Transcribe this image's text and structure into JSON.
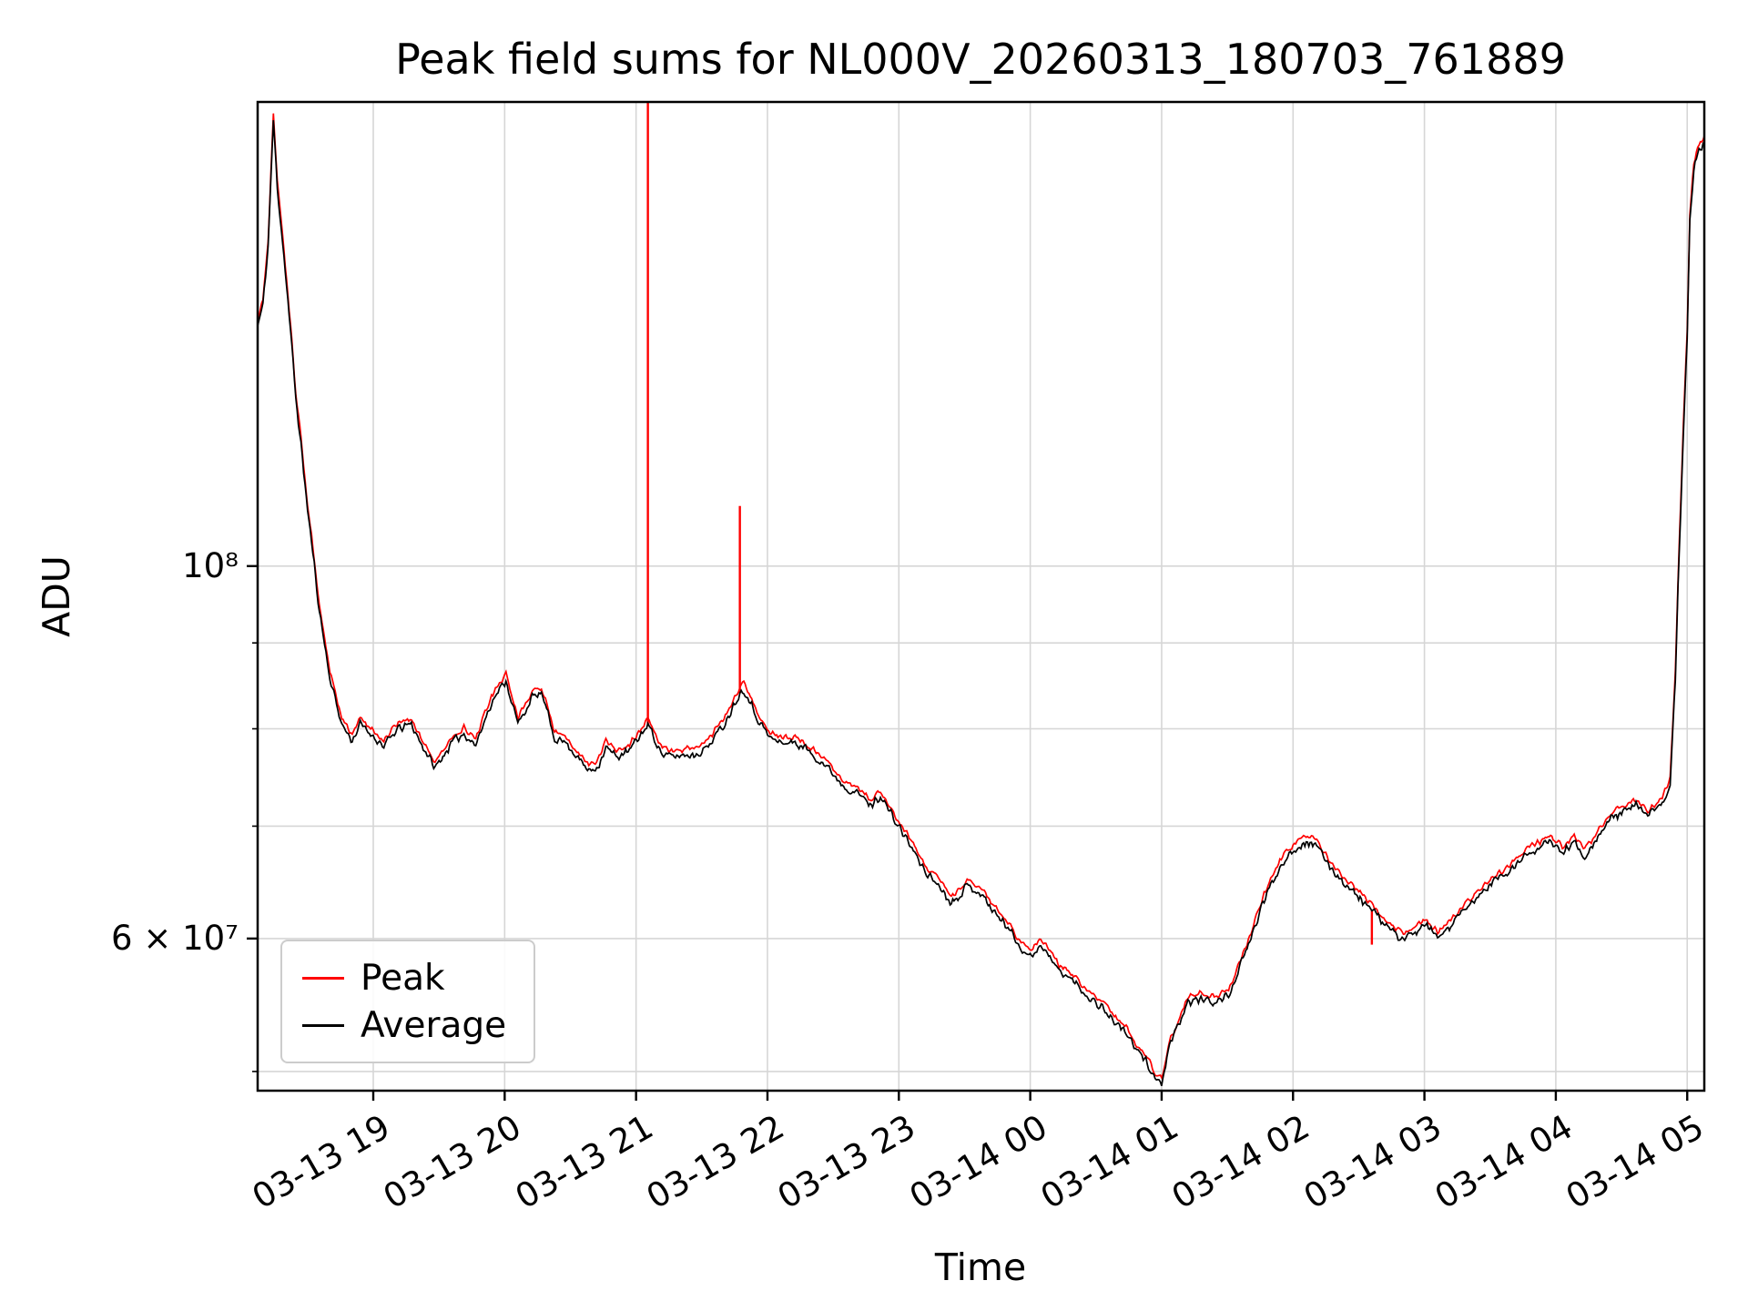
{
  "figure": {
    "title": "Peak field sums for NL000V_20260313_180703_761889",
    "xlabel": "Time",
    "ylabel": "ADU"
  },
  "legend": {
    "items": [
      {
        "label": "Peak",
        "color": "#ff0000"
      },
      {
        "label": "Average",
        "color": "#000000"
      }
    ]
  },
  "chart_data": {
    "type": "line",
    "title": "Peak field sums for NL000V_20260313_180703_761889",
    "xlabel": "Time",
    "ylabel": "ADU",
    "yscale": "log",
    "grid": true,
    "legend_position": "lower left",
    "x_unit": "hours since 2026-03-13 00:00",
    "value_unit": 10000000,
    "xlim": [
      18.12,
      29.13
    ],
    "ylim_e7": [
      4.87,
      18.9
    ],
    "x_ticks": [
      {
        "t": 19,
        "label": "03-13 19"
      },
      {
        "t": 20,
        "label": "03-13 20"
      },
      {
        "t": 21,
        "label": "03-13 21"
      },
      {
        "t": 22,
        "label": "03-13 22"
      },
      {
        "t": 23,
        "label": "03-13 23"
      },
      {
        "t": 24,
        "label": "03-14 00"
      },
      {
        "t": 25,
        "label": "03-14 01"
      },
      {
        "t": 26,
        "label": "03-14 02"
      },
      {
        "t": 27,
        "label": "03-14 03"
      },
      {
        "t": 28,
        "label": "03-14 04"
      },
      {
        "t": 29,
        "label": "03-14 05"
      }
    ],
    "y_ticks": [
      {
        "v_e7": 10,
        "label": "10⁸",
        "kind": "major"
      },
      {
        "v_e7": 6,
        "label": "6 × 10⁷",
        "kind": "major"
      },
      {
        "v_e7": 5,
        "label": "",
        "kind": "minor"
      },
      {
        "v_e7": 7,
        "label": "",
        "kind": "minor"
      },
      {
        "v_e7": 8,
        "label": "",
        "kind": "minor"
      },
      {
        "v_e7": 9,
        "label": "",
        "kind": "minor"
      }
    ],
    "noise": {
      "seed_avg": 11,
      "seed_peak": 97,
      "amplitude_avg": 0.007,
      "amplitude_peak": 0.005,
      "dt": 0.01
    },
    "series": [
      {
        "name": "Peak",
        "color": "#ff0000",
        "derived_from": "Average",
        "factor": 1.008,
        "spikes_e7": [
          [
            21.09,
            21.0
          ],
          [
            21.79,
            10.86
          ],
          [
            26.6,
            5.95
          ]
        ]
      },
      {
        "name": "Average",
        "color": "#000000",
        "points_e7": [
          [
            18.12,
            13.9
          ],
          [
            18.16,
            14.3
          ],
          [
            18.2,
            15.5
          ],
          [
            18.24,
            18.4
          ],
          [
            18.27,
            16.8
          ],
          [
            18.33,
            15.0
          ],
          [
            18.41,
            12.6
          ],
          [
            18.5,
            10.8
          ],
          [
            18.59,
            9.4
          ],
          [
            18.67,
            8.57
          ],
          [
            18.76,
            8.05
          ],
          [
            18.84,
            7.87
          ],
          [
            18.9,
            8.05
          ],
          [
            19.0,
            7.92
          ],
          [
            19.08,
            7.81
          ],
          [
            19.19,
            8.0
          ],
          [
            19.29,
            8.05
          ],
          [
            19.36,
            7.85
          ],
          [
            19.47,
            7.58
          ],
          [
            19.6,
            7.85
          ],
          [
            19.69,
            7.95
          ],
          [
            19.78,
            7.82
          ],
          [
            19.9,
            8.3
          ],
          [
            20.01,
            8.55
          ],
          [
            20.1,
            8.05
          ],
          [
            20.21,
            8.35
          ],
          [
            20.28,
            8.4
          ],
          [
            20.38,
            7.9
          ],
          [
            20.47,
            7.85
          ],
          [
            20.55,
            7.7
          ],
          [
            20.64,
            7.55
          ],
          [
            20.71,
            7.6
          ],
          [
            20.77,
            7.8
          ],
          [
            20.85,
            7.7
          ],
          [
            20.94,
            7.75
          ],
          [
            21.02,
            7.9
          ],
          [
            21.09,
            8.05
          ],
          [
            21.2,
            7.72
          ],
          [
            21.28,
            7.7
          ],
          [
            21.38,
            7.72
          ],
          [
            21.45,
            7.72
          ],
          [
            21.54,
            7.8
          ],
          [
            21.67,
            8.05
          ],
          [
            21.79,
            8.4
          ],
          [
            21.82,
            8.45
          ],
          [
            21.93,
            8.1
          ],
          [
            22.02,
            7.9
          ],
          [
            22.1,
            7.85
          ],
          [
            22.2,
            7.85
          ],
          [
            22.28,
            7.8
          ],
          [
            22.32,
            7.75
          ],
          [
            22.45,
            7.6
          ],
          [
            22.58,
            7.4
          ],
          [
            22.71,
            7.3
          ],
          [
            22.79,
            7.2
          ],
          [
            22.86,
            7.3
          ],
          [
            22.97,
            7.05
          ],
          [
            23.05,
            6.9
          ],
          [
            23.14,
            6.7
          ],
          [
            23.22,
            6.55
          ],
          [
            23.31,
            6.45
          ],
          [
            23.4,
            6.3
          ],
          [
            23.52,
            6.45
          ],
          [
            23.61,
            6.4
          ],
          [
            23.74,
            6.2
          ],
          [
            23.83,
            6.1
          ],
          [
            23.91,
            5.95
          ],
          [
            24.0,
            5.85
          ],
          [
            24.08,
            5.95
          ],
          [
            24.21,
            5.75
          ],
          [
            24.34,
            5.65
          ],
          [
            24.43,
            5.55
          ],
          [
            24.56,
            5.45
          ],
          [
            24.64,
            5.35
          ],
          [
            24.73,
            5.28
          ],
          [
            24.8,
            5.15
          ],
          [
            24.88,
            5.08
          ],
          [
            24.95,
            4.95
          ],
          [
            25.0,
            4.92
          ],
          [
            25.07,
            5.2
          ],
          [
            25.16,
            5.4
          ],
          [
            25.2,
            5.5
          ],
          [
            25.3,
            5.52
          ],
          [
            25.42,
            5.5
          ],
          [
            25.51,
            5.55
          ],
          [
            25.59,
            5.75
          ],
          [
            25.68,
            6.0
          ],
          [
            25.77,
            6.3
          ],
          [
            25.85,
            6.5
          ],
          [
            25.94,
            6.7
          ],
          [
            26.03,
            6.8
          ],
          [
            26.1,
            6.85
          ],
          [
            26.16,
            6.83
          ],
          [
            26.24,
            6.7
          ],
          [
            26.33,
            6.55
          ],
          [
            26.41,
            6.45
          ],
          [
            26.5,
            6.35
          ],
          [
            26.59,
            6.25
          ],
          [
            26.67,
            6.15
          ],
          [
            26.76,
            6.05
          ],
          [
            26.84,
            6.0
          ],
          [
            26.93,
            6.05
          ],
          [
            27.02,
            6.1
          ],
          [
            27.1,
            6.0
          ],
          [
            27.19,
            6.1
          ],
          [
            27.28,
            6.2
          ],
          [
            27.36,
            6.3
          ],
          [
            27.45,
            6.4
          ],
          [
            27.53,
            6.5
          ],
          [
            27.62,
            6.55
          ],
          [
            27.71,
            6.65
          ],
          [
            27.79,
            6.75
          ],
          [
            27.88,
            6.8
          ],
          [
            27.97,
            6.85
          ],
          [
            28.05,
            6.75
          ],
          [
            28.14,
            6.85
          ],
          [
            28.22,
            6.72
          ],
          [
            28.35,
            6.95
          ],
          [
            28.44,
            7.1
          ],
          [
            28.53,
            7.15
          ],
          [
            28.61,
            7.2
          ],
          [
            28.7,
            7.1
          ],
          [
            28.78,
            7.18
          ],
          [
            28.84,
            7.3
          ],
          [
            28.87,
            7.4
          ],
          [
            28.91,
            8.6
          ],
          [
            28.95,
            10.8
          ],
          [
            29.0,
            13.7
          ],
          [
            29.02,
            16.0
          ],
          [
            29.05,
            17.2
          ],
          [
            29.08,
            17.6
          ],
          [
            29.13,
            17.9
          ]
        ]
      }
    ]
  }
}
